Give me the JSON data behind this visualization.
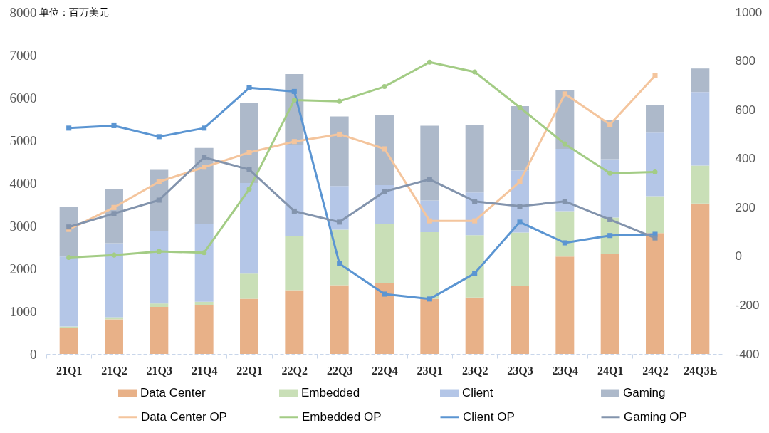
{
  "chart_data": {
    "type": "bar",
    "ylabel": "单位：百万美元",
    "categories": [
      "21Q1",
      "21Q2",
      "21Q3",
      "21Q4",
      "22Q1",
      "22Q2",
      "22Q3",
      "22Q4",
      "23Q1",
      "23Q2",
      "23Q3",
      "23Q4",
      "24Q1",
      "24Q2",
      "24Q3E"
    ],
    "series": [
      {
        "name": "Data Center",
        "color": "#e8b188",
        "values": [
          600,
          810,
          1100,
          1150,
          1290,
          1490,
          1610,
          1650,
          1290,
          1320,
          1600,
          2280,
          2340,
          2830,
          3520
        ]
      },
      {
        "name": "Embedded",
        "color": "#c9dfb7",
        "values": [
          40,
          50,
          80,
          70,
          590,
          1260,
          1300,
          1390,
          1560,
          1460,
          1240,
          1060,
          850,
          860,
          890
        ]
      },
      {
        "name": "Client",
        "color": "#b4c6e7",
        "values": [
          1640,
          1730,
          1690,
          1830,
          2120,
          2150,
          1020,
          910,
          740,
          1000,
          1450,
          1460,
          1370,
          1490,
          1720
        ]
      },
      {
        "name": "Gaming",
        "color": "#adb9ca",
        "values": [
          1160,
          1260,
          1440,
          1770,
          1880,
          1650,
          1630,
          1640,
          1750,
          1580,
          1510,
          1370,
          920,
          650,
          550
        ]
      },
      {
        "name": "Data Center OP",
        "type": "line",
        "axis": "y2",
        "marker": "square",
        "color": "#f4c59d",
        "values": [
          110,
          200,
          305,
          365,
          425,
          470,
          500,
          440,
          145,
          145,
          305,
          665,
          540,
          740,
          null
        ]
      },
      {
        "name": "Embedded OP",
        "type": "line",
        "axis": "y2",
        "marker": "circle",
        "color": "#a3cc85",
        "values": [
          -5,
          5,
          20,
          15,
          275,
          640,
          635,
          695,
          795,
          755,
          610,
          460,
          340,
          345,
          null
        ]
      },
      {
        "name": "Client OP",
        "type": "line",
        "axis": "y2",
        "marker": "square",
        "color": "#5b95d2",
        "values": [
          525,
          535,
          490,
          525,
          690,
          675,
          -30,
          -155,
          -175,
          -70,
          140,
          55,
          85,
          90,
          null
        ]
      },
      {
        "name": "Gaming OP",
        "type": "line",
        "axis": "y2",
        "marker": "square",
        "color": "#8394ad",
        "values": [
          120,
          175,
          230,
          405,
          355,
          185,
          140,
          265,
          315,
          225,
          205,
          225,
          150,
          75,
          null
        ]
      }
    ],
    "stacked": true,
    "ylim": [
      0,
      8000
    ],
    "yticks": [
      0,
      1000,
      2000,
      3000,
      4000,
      5000,
      6000,
      7000,
      8000
    ],
    "y2lim": [
      -400,
      1000
    ],
    "y2ticks": [
      -400,
      -200,
      0,
      200,
      400,
      600,
      800,
      1000
    ],
    "legend": "bottom",
    "grid": false
  }
}
